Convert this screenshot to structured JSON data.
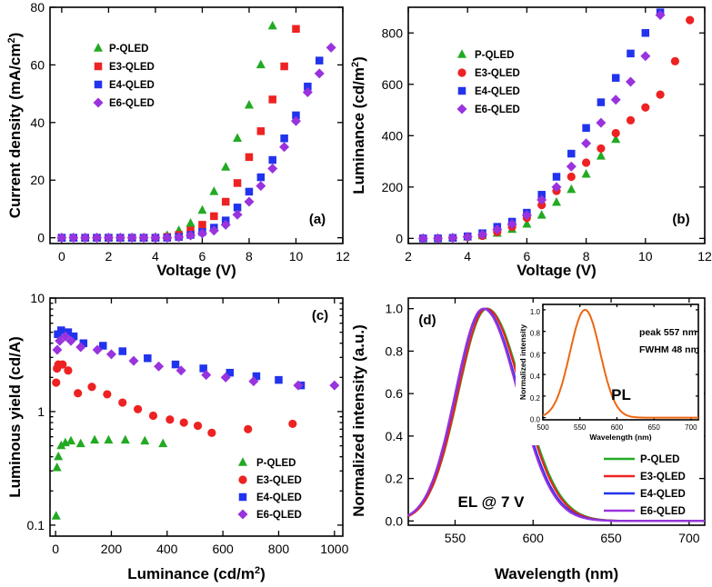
{
  "colors": {
    "P-QLED": "#22aa22",
    "E3-QLED": "#ee2222",
    "E4-QLED": "#2233ee",
    "E6-QLED": "#9933dd",
    "PL": "#ee6611"
  },
  "chart_data": [
    {
      "id": "a",
      "type": "scatter",
      "panel_label": "(a)",
      "xlabel": "Voltage (V)",
      "ylabel": "Current density (mA/cm²)",
      "xlim": [
        -0.5,
        12
      ],
      "ylim": [
        -2,
        80
      ],
      "xticks": [
        0,
        2,
        4,
        6,
        8,
        10,
        12
      ],
      "yticks": [
        0,
        20,
        40,
        60,
        80
      ],
      "legend_position": "top-left",
      "series": [
        {
          "name": "P-QLED",
          "marker": "triangle",
          "x": [
            0,
            0.5,
            1,
            1.5,
            2,
            2.5,
            3,
            3.5,
            4,
            4.5,
            5,
            5.5,
            6,
            6.5,
            7,
            7.5,
            8,
            8.5,
            9
          ],
          "y": [
            0,
            0,
            0,
            0,
            0,
            0,
            0,
            0,
            0.2,
            0.8,
            2.5,
            5,
            9.5,
            16,
            24.5,
            34.5,
            46,
            60,
            73.5
          ]
        },
        {
          "name": "E3-QLED",
          "marker": "square",
          "x": [
            0,
            0.5,
            1,
            1.5,
            2,
            2.5,
            3,
            3.5,
            4,
            4.5,
            5,
            5.5,
            6,
            6.5,
            7,
            7.5,
            8,
            8.5,
            9,
            9.5,
            10
          ],
          "y": [
            0,
            0,
            0,
            0,
            0,
            0,
            0,
            0,
            0,
            0.3,
            1,
            2.5,
            4.5,
            7.5,
            12.5,
            19,
            28,
            37,
            48,
            59.5,
            72.5
          ]
        },
        {
          "name": "E4-QLED",
          "marker": "square",
          "x": [
            0,
            0.5,
            1,
            1.5,
            2,
            2.5,
            3,
            3.5,
            4,
            4.5,
            5,
            5.5,
            6,
            6.5,
            7,
            7.5,
            8,
            8.5,
            9,
            9.5,
            10,
            10.5,
            11
          ],
          "y": [
            0,
            0,
            0,
            0,
            0,
            0,
            0,
            0,
            0,
            0,
            0.3,
            1,
            2,
            3.5,
            6,
            10.5,
            16,
            21,
            27,
            34.5,
            42.5,
            52.5,
            61.5
          ]
        },
        {
          "name": "E6-QLED",
          "marker": "diamond",
          "x": [
            0,
            0.5,
            1,
            1.5,
            2,
            2.5,
            3,
            3.5,
            4,
            4.5,
            5,
            5.5,
            6,
            6.5,
            7,
            7.5,
            8,
            8.5,
            9,
            9.5,
            10,
            10.5,
            11,
            11.5
          ],
          "y": [
            0,
            0,
            0,
            0,
            0,
            0,
            0,
            0,
            0,
            0,
            0.2,
            0.8,
            1.5,
            2.5,
            4.5,
            8,
            12.5,
            18,
            24,
            31.5,
            40.5,
            50.5,
            57,
            66
          ]
        }
      ]
    },
    {
      "id": "b",
      "type": "scatter",
      "panel_label": "(b)",
      "xlabel": "Voltage (V)",
      "ylabel": "Luminance (cd/m²)",
      "xlim": [
        2,
        12
      ],
      "ylim": [
        -20,
        900
      ],
      "xticks": [
        2,
        4,
        6,
        8,
        10,
        12
      ],
      "yticks": [
        0,
        200,
        400,
        600,
        800
      ],
      "legend_position": "top-left",
      "series": [
        {
          "name": "P-QLED",
          "marker": "triangle",
          "x": [
            2.5,
            3,
            3.5,
            4,
            4.5,
            5,
            5.5,
            6,
            6.5,
            7,
            7.5,
            8,
            8.5,
            9
          ],
          "y": [
            0,
            0,
            2,
            5,
            10,
            20,
            35,
            55,
            90,
            140,
            190,
            250,
            320,
            385
          ]
        },
        {
          "name": "E3-QLED",
          "marker": "circle",
          "x": [
            2.5,
            3,
            3.5,
            4,
            4.5,
            5,
            5.5,
            6,
            6.5,
            7,
            7.5,
            8,
            8.5,
            9,
            9.5,
            10,
            10.5,
            11,
            11.5
          ],
          "y": [
            0,
            0,
            2,
            5,
            10,
            25,
            45,
            80,
            130,
            185,
            240,
            295,
            350,
            410,
            460,
            510,
            560,
            690,
            850
          ]
        },
        {
          "name": "E4-QLED",
          "marker": "square",
          "x": [
            2.5,
            3,
            3.5,
            4,
            4.5,
            5,
            5.5,
            6,
            6.5,
            7,
            7.5,
            8,
            8.5,
            9,
            9.5,
            10,
            10.5
          ],
          "y": [
            0,
            0,
            2,
            8,
            20,
            45,
            65,
            100,
            170,
            240,
            330,
            430,
            530,
            625,
            720,
            800,
            880
          ]
        },
        {
          "name": "E6-QLED",
          "marker": "diamond",
          "x": [
            2.5,
            3,
            3.5,
            4,
            4.5,
            5,
            5.5,
            6,
            6.5,
            7,
            7.5,
            8,
            8.5,
            9,
            9.5,
            10,
            10.5
          ],
          "y": [
            0,
            0,
            2,
            6,
            15,
            35,
            55,
            90,
            150,
            200,
            280,
            370,
            450,
            540,
            610,
            710,
            870
          ]
        }
      ]
    },
    {
      "id": "c",
      "type": "scatter",
      "panel_label": "(c)",
      "xlabel": "Luminance (cd/m²)",
      "ylabel": "Luminous yield (cd/A)",
      "xscale": "linear",
      "yscale": "log",
      "xlim": [
        -20,
        1030
      ],
      "ylim": [
        0.08,
        10
      ],
      "xticks": [
        0,
        200,
        400,
        600,
        800,
        1000
      ],
      "yticks": [
        0.1,
        1,
        10
      ],
      "yticklabels": [
        "0.1",
        "1",
        "10"
      ],
      "legend_position": "bottom-right",
      "series": [
        {
          "name": "P-QLED",
          "marker": "triangle",
          "x": [
            2,
            5,
            10,
            20,
            35,
            55,
            90,
            140,
            190,
            250,
            320,
            385
          ],
          "y": [
            0.12,
            0.32,
            0.4,
            0.5,
            0.53,
            0.55,
            0.52,
            0.56,
            0.56,
            0.56,
            0.55,
            0.52
          ]
        },
        {
          "name": "E3-QLED",
          "marker": "circle",
          "x": [
            2,
            5,
            10,
            25,
            45,
            80,
            130,
            185,
            240,
            295,
            350,
            410,
            460,
            510,
            560,
            690,
            850
          ],
          "y": [
            1.8,
            2.4,
            2.6,
            2.6,
            2.3,
            1.45,
            1.65,
            1.42,
            1.2,
            1.05,
            0.92,
            0.85,
            0.8,
            0.75,
            0.65,
            0.7,
            0.78
          ]
        },
        {
          "name": "E4-QLED",
          "marker": "square",
          "x": [
            8,
            20,
            45,
            65,
            100,
            170,
            240,
            330,
            430,
            530,
            625,
            720,
            800,
            880
          ],
          "y": [
            4.8,
            5.2,
            5,
            4.6,
            4,
            3.8,
            3.4,
            2.95,
            2.6,
            2.4,
            2.2,
            2.05,
            1.9,
            1.7
          ]
        },
        {
          "name": "E6-QLED",
          "marker": "diamond",
          "x": [
            6,
            15,
            35,
            55,
            90,
            150,
            200,
            280,
            370,
            450,
            540,
            610,
            710,
            870,
            1000
          ],
          "y": [
            3.5,
            4.2,
            4.6,
            4.2,
            3.7,
            3.5,
            3.2,
            2.8,
            2.5,
            2.3,
            2.1,
            2.0,
            1.85,
            1.7,
            1.7
          ]
        }
      ]
    },
    {
      "id": "d",
      "type": "line",
      "panel_label": "(d)",
      "xlabel": "Wavelength (nm)",
      "ylabel": "Normalized intensity (a.u.)",
      "xlim": [
        520,
        710
      ],
      "ylim": [
        -0.02,
        1.05
      ],
      "xticks": [
        550,
        600,
        650,
        700
      ],
      "yticks": [
        0.0,
        0.2,
        0.4,
        0.6,
        0.8,
        1.0
      ],
      "yticklabels": [
        "0.0",
        "0.2",
        "0.4",
        "0.6",
        "0.8",
        "1.0"
      ],
      "annotation": "EL @ 7 V",
      "legend_position": "bottom-right",
      "series": [
        {
          "name": "P-QLED",
          "peak": 570.5,
          "fwhm": 48
        },
        {
          "name": "E3-QLED",
          "peak": 570,
          "fwhm": 47.5
        },
        {
          "name": "E4-QLED",
          "peak": 568.5,
          "fwhm": 47
        },
        {
          "name": "E6-QLED",
          "peak": 568,
          "fwhm": 46.5
        }
      ],
      "inset": {
        "type": "line",
        "label": "PL",
        "xlabel": "Wavelength (nm)",
        "ylabel": "Normalized intensity",
        "xlim": [
          500,
          710
        ],
        "ylim": [
          -0.02,
          1.05
        ],
        "xticks": [
          500,
          550,
          600,
          650,
          700
        ],
        "yticks": [
          0.0,
          0.2,
          0.4,
          0.6,
          0.8,
          1.0
        ],
        "yticklabels": [
          "0.0",
          "0.2",
          "0.4",
          "0.6",
          "0.8",
          "1.0"
        ],
        "peak_text": "peak  557 nm",
        "fwhm_text": "FWHM   48 nm",
        "series": [
          {
            "name": "PL",
            "peak": 557,
            "fwhm": 48
          }
        ]
      }
    }
  ]
}
